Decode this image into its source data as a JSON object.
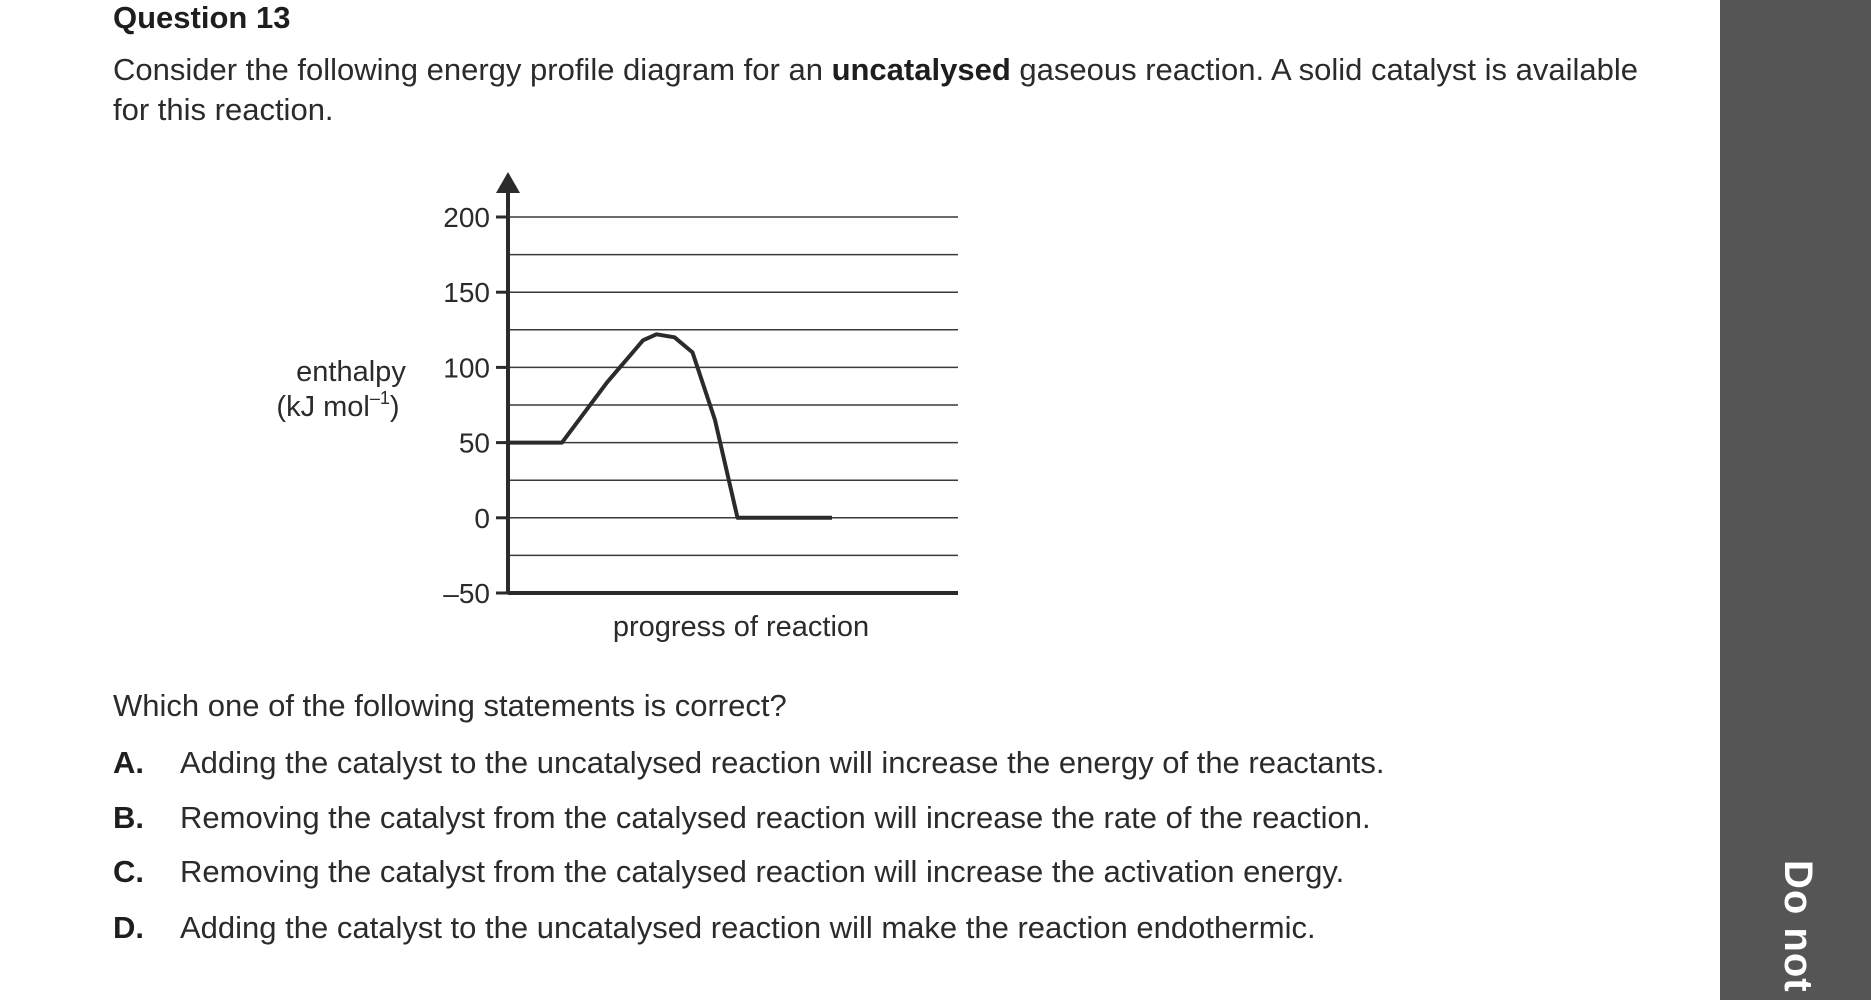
{
  "question": {
    "title": "Question 13",
    "stem_part1": "Consider the following energy profile diagram for an ",
    "stem_bold": "uncatalysed",
    "stem_part2": " gaseous reaction. A solid catalyst is available for this reaction.",
    "prompt": "Which one of the following statements is correct?",
    "options": [
      {
        "letter": "A.",
        "text": "Adding the catalyst to the uncatalysed reaction will increase the energy of the reactants."
      },
      {
        "letter": "B.",
        "text": "Removing the catalyst from the catalysed reaction will increase the rate of the reaction."
      },
      {
        "letter": "C.",
        "text": "Removing the catalyst from the catalysed reaction will increase the activation energy."
      },
      {
        "letter": "D.",
        "text": "Adding the catalyst to the uncatalysed reaction will make the reaction endothermic."
      }
    ]
  },
  "sidebar": {
    "text": "Do not"
  },
  "chart_data": {
    "type": "line",
    "title": "",
    "xlabel": "progress of reaction",
    "ylabel_line1": "enthalpy",
    "ylabel_line2": "(kJ mol",
    "ylabel_sup": "–1",
    "ylabel_close": ")",
    "ylim": [
      -50,
      200
    ],
    "yticks": [
      200,
      150,
      100,
      50,
      0,
      -50
    ],
    "ytick_labels": [
      "200",
      "150",
      "100",
      "50",
      "0",
      "–50"
    ],
    "grid_every": 25,
    "grid": true,
    "xlim": [
      0,
      1
    ],
    "series": [
      {
        "x": [
          0,
          0.12,
          0.22,
          0.3,
          0.33,
          0.37,
          0.41,
          0.46,
          0.51,
          0.72
        ],
        "y": [
          50,
          50,
          90,
          118,
          122,
          120,
          110,
          65,
          0,
          0
        ]
      }
    ]
  }
}
